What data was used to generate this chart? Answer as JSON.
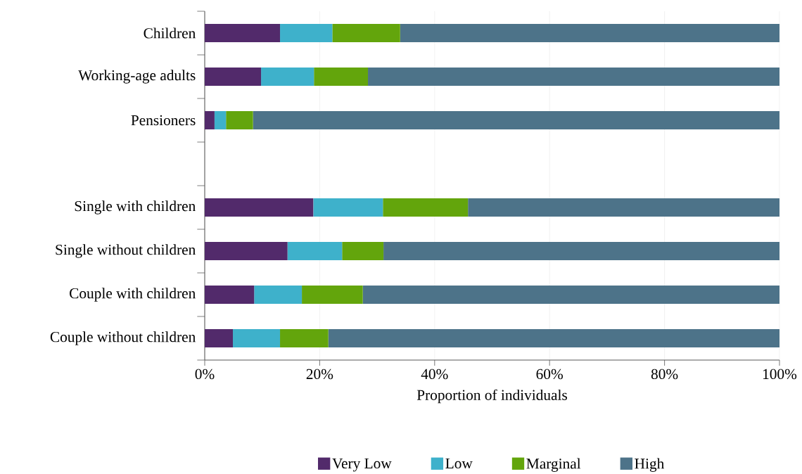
{
  "chart_data": {
    "type": "bar",
    "orientation": "horizontal",
    "stacked": true,
    "categories": [
      "Children",
      "Working-age adults",
      "Pensioners",
      null,
      "Single with children",
      "Single without children",
      "Couple with children",
      "Couple without children"
    ],
    "series": [
      {
        "name": "Very Low",
        "color": "#522a6b",
        "values": [
          13.1,
          9.8,
          1.7,
          null,
          18.9,
          14.4,
          8.6,
          4.9
        ]
      },
      {
        "name": "Low",
        "color": "#3eb1cb",
        "values": [
          9.1,
          9.2,
          2.0,
          null,
          12.1,
          9.5,
          8.3,
          8.2
        ]
      },
      {
        "name": "Marginal",
        "color": "#63a50c",
        "values": [
          11.8,
          9.4,
          4.7,
          null,
          14.8,
          7.2,
          10.6,
          8.4
        ]
      },
      {
        "name": "High",
        "color": "#4d7389",
        "values": [
          66.0,
          71.6,
          91.6,
          null,
          54.2,
          68.9,
          72.5,
          78.5
        ]
      }
    ],
    "xlabel": "Proportion of individuals",
    "xlim": [
      0,
      100
    ],
    "xticks": [
      {
        "value": 0,
        "label": "0%"
      },
      {
        "value": 20,
        "label": "20%"
      },
      {
        "value": 40,
        "label": "40%"
      },
      {
        "value": 60,
        "label": "60%"
      },
      {
        "value": 80,
        "label": "80%"
      },
      {
        "value": 100,
        "label": "100%"
      }
    ],
    "grid": "x",
    "legend": "bottom"
  }
}
